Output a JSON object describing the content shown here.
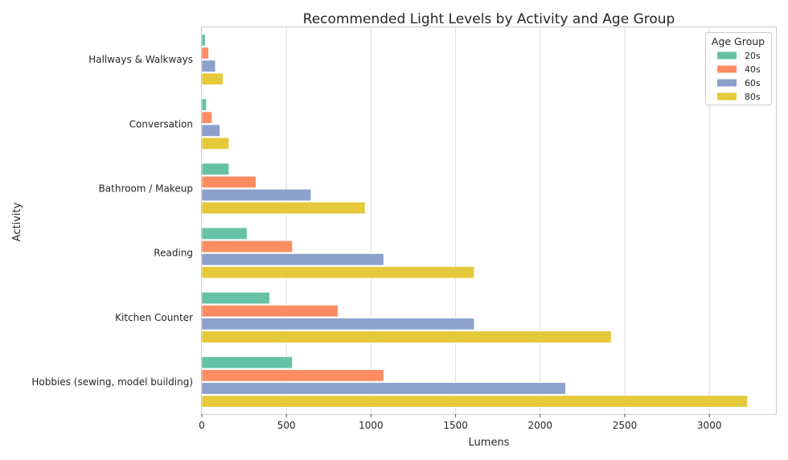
{
  "chart_data": {
    "type": "bar",
    "orientation": "horizontal",
    "title": "Recommended Light Levels by Activity and Age Group",
    "xlabel": "Lumens",
    "ylabel": "Activity",
    "xlim": [
      0,
      3400
    ],
    "xticks": [
      "0",
      "500",
      "1000",
      "1500",
      "2000",
      "2500",
      "3000"
    ],
    "grid": "vertical",
    "legend": {
      "title": "Age Group",
      "placement": "top-right"
    },
    "categories": [
      "Hallways & Walkways",
      "Conversation",
      "Bathroom / Makeup",
      "Reading",
      "Kitchen Counter",
      "Hobbies (sewing, model building)"
    ],
    "series": [
      {
        "name": "20s",
        "color": "#66c2a5",
        "values": [
          20,
          27,
          160,
          267,
          400,
          535
        ]
      },
      {
        "name": "40s",
        "color": "#fc8d62",
        "values": [
          40,
          60,
          320,
          535,
          805,
          1075
        ]
      },
      {
        "name": "60s",
        "color": "#8da0cb",
        "values": [
          80,
          107,
          645,
          1075,
          1610,
          2150
        ]
      },
      {
        "name": "80s",
        "color": "#e5c93b",
        "values": [
          125,
          160,
          965,
          1610,
          2420,
          3225
        ]
      }
    ]
  }
}
